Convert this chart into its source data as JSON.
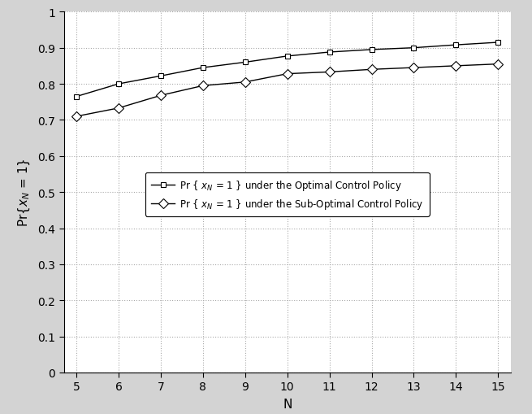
{
  "N": [
    5,
    6,
    7,
    8,
    9,
    10,
    11,
    12,
    13,
    14,
    15
  ],
  "optimal": [
    0.765,
    0.8,
    0.822,
    0.845,
    0.86,
    0.877,
    0.888,
    0.895,
    0.9,
    0.908,
    0.915
  ],
  "suboptimal": [
    0.71,
    0.733,
    0.768,
    0.795,
    0.805,
    0.828,
    0.833,
    0.84,
    0.845,
    0.85,
    0.855
  ],
  "optimal_marker": "s",
  "suboptimal_marker": "D",
  "line_color": "#000000",
  "ylim": [
    0,
    1.0
  ],
  "xlim": [
    5,
    15
  ],
  "xlabel": "N",
  "legend_optimal": "Pr { $x_N$ = 1 } under the Optimal Control Policy",
  "legend_suboptimal": "Pr { $x_N$ = 1 } under the Sub-Optimal Control Policy",
  "yticks": [
    0,
    0.1,
    0.2,
    0.3,
    0.4,
    0.5,
    0.6,
    0.7,
    0.8,
    0.9,
    1
  ],
  "xticks": [
    5,
    6,
    7,
    8,
    9,
    10,
    11,
    12,
    13,
    14,
    15
  ],
  "grid_color": "#aaaaaa",
  "grid_linestyle": ":",
  "plot_bg_color": "#ffffff",
  "fig_bg_color": "#d3d3d3",
  "figsize": [
    6.55,
    5.1
  ],
  "dpi": 100
}
